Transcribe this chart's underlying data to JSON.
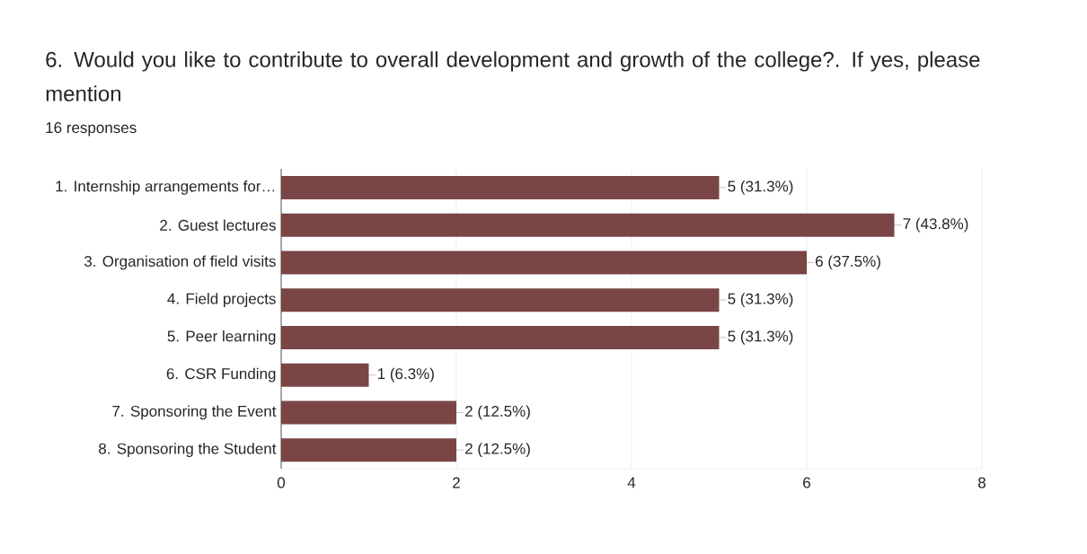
{
  "chart_data": {
    "type": "bar",
    "orientation": "horizontal",
    "title": "6. Would  you like to contribute to overall development and  growth of the college?. If yes, please mention",
    "subtitle": "16 responses",
    "categories": [
      "1. Internship arrangements for…",
      "2. Guest lectures",
      "3. Organisation of field visits",
      "4. Field projects",
      "5. Peer learning",
      "6. CSR Funding",
      "7. Sponsoring the Event",
      "8. Sponsoring the Student"
    ],
    "values": [
      5,
      7,
      6,
      5,
      5,
      1,
      2,
      2
    ],
    "value_labels": [
      "5 (31.3%)",
      "7 (43.8%)",
      "6 (37.5%)",
      "5 (31.3%)",
      "5 (31.3%)",
      "1 (6.3%)",
      "2 (12.5%)",
      "2 (12.5%)"
    ],
    "color": "#7a4545",
    "xlim": [
      0,
      8
    ],
    "xticks": [
      0,
      2,
      4,
      6,
      8
    ],
    "grid": "x"
  }
}
